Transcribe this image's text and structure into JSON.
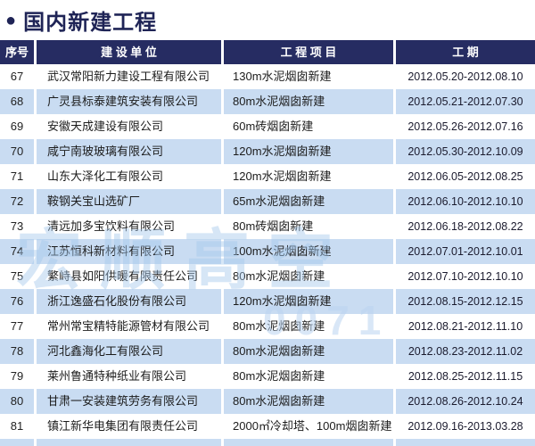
{
  "title": "国内新建工程",
  "bullet": "●",
  "columns": [
    "序号",
    "建 设 单 位",
    "工 程 项 目",
    "工    期"
  ],
  "rows": [
    {
      "no": "67",
      "company": "武汉常阳新力建设工程有限公司",
      "project": "130m水泥烟囱新建",
      "period": "2012.05.20-2012.08.10"
    },
    {
      "no": "68",
      "company": "广灵县标泰建筑安装有限公司",
      "project": "80m水泥烟囱新建",
      "period": "2012.05.21-2012.07.30"
    },
    {
      "no": "69",
      "company": "安徽天成建设有限公司",
      "project": "60m砖烟囱新建",
      "period": "2012.05.26-2012.07.16"
    },
    {
      "no": "70",
      "company": "咸宁南玻玻璃有限公司",
      "project": "120m水泥烟囱新建",
      "period": "2012.05.30-2012.10.09"
    },
    {
      "no": "71",
      "company": "山东大泽化工有限公司",
      "project": "120m水泥烟囱新建",
      "period": "2012.06.05-2012.08.25"
    },
    {
      "no": "72",
      "company": "鞍钢关宝山选矿厂",
      "project": "65m水泥烟囱新建",
      "period": "2012.06.10-2012.10.10"
    },
    {
      "no": "73",
      "company": "清远加多宝饮料有限公司",
      "project": "80m砖烟囱新建",
      "period": "2012.06.18-2012.08.22"
    },
    {
      "no": "74",
      "company": "江苏恒科新材料有限公司",
      "project": "100m水泥烟囱新建",
      "period": "2012.07.01-2012.10.01"
    },
    {
      "no": "75",
      "company": "繁峙县如阳供暖有限责任公司",
      "project": "80m水泥烟囱新建",
      "period": "2012.07.10-2012.10.10"
    },
    {
      "no": "76",
      "company": "浙江逸盛石化股份有限公司",
      "project": "120m水泥烟囱新建",
      "period": "2012.08.15-2012.12.15"
    },
    {
      "no": "77",
      "company": "常州常宝精特能源管材有限公司",
      "project": "80m水泥烟囱新建",
      "period": "2012.08.21-2012.11.10"
    },
    {
      "no": "78",
      "company": "河北鑫海化工有限公司",
      "project": "80m水泥烟囱新建",
      "period": "2012.08.23-2012.11.02"
    },
    {
      "no": "79",
      "company": "莱州鲁通特种纸业有限公司",
      "project": "80m水泥烟囱新建",
      "period": "2012.08.25-2012.11.15"
    },
    {
      "no": "80",
      "company": "甘肃一安装建筑劳务有限公司",
      "project": "80m水泥烟囱新建",
      "period": "2012.08.26-2012.10.24"
    },
    {
      "no": "81",
      "company": "镇江新华电集团有限责任公司",
      "project": "2000㎡冷却塔、100m烟囱新建",
      "period": "2012.09.16-2013.03.28"
    }
  ],
  "watermark": {
    "text": "宏顺高空",
    "digits": "0071"
  },
  "colors": {
    "header_navy": "#262c62",
    "title_navy": "#1f2456",
    "row_alt_blue": "#c9dcf2",
    "row_plain": "#ffffff"
  }
}
